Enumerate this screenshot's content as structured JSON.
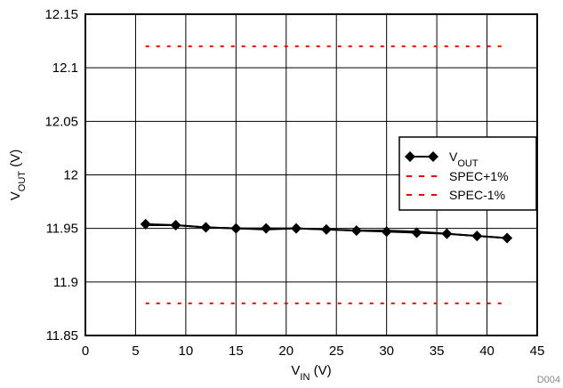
{
  "chart_data": {
    "type": "line",
    "x": [
      6,
      9,
      12,
      15,
      18,
      21,
      24,
      27,
      30,
      33,
      36,
      39,
      42
    ],
    "series": [
      {
        "name": "VOUT",
        "label_main": "V",
        "label_sub": "OUT",
        "values": [
          11.954,
          11.953,
          11.951,
          11.95,
          11.95,
          11.95,
          11.949,
          11.948,
          11.947,
          11.946,
          11.945,
          11.943,
          11.941
        ],
        "return_values": [
          11.953,
          11.953,
          11.951,
          11.95,
          11.949,
          11.95,
          11.949,
          11.948,
          11.948,
          11.947,
          11.945,
          11.943,
          11.941
        ],
        "color": "#000000",
        "marker": "diamond"
      },
      {
        "name": "SPEC+1%",
        "x": [
          6,
          42
        ],
        "values": [
          12.12,
          12.12
        ],
        "color": "#ff0000",
        "style": "dashed"
      },
      {
        "name": "SPEC-1%",
        "x": [
          6,
          42
        ],
        "values": [
          11.88,
          11.88
        ],
        "color": "#ff0000",
        "style": "dashed"
      }
    ],
    "xlim": [
      0,
      45
    ],
    "ylim": [
      11.85,
      12.15
    ],
    "x_ticks": [
      "0",
      "5",
      "10",
      "15",
      "20",
      "25",
      "30",
      "35",
      "40",
      "45"
    ],
    "y_ticks": [
      "11.85",
      "11.9",
      "11.95",
      "12",
      "12.05",
      "12.1",
      "12.15"
    ],
    "xlabel": {
      "main": "V",
      "sub": "IN",
      "unit": " (V)"
    },
    "ylabel": {
      "main": "V",
      "sub": "OUT",
      "unit": " (V)"
    },
    "grid": true,
    "legend_position": "right"
  },
  "watermark": "D004"
}
